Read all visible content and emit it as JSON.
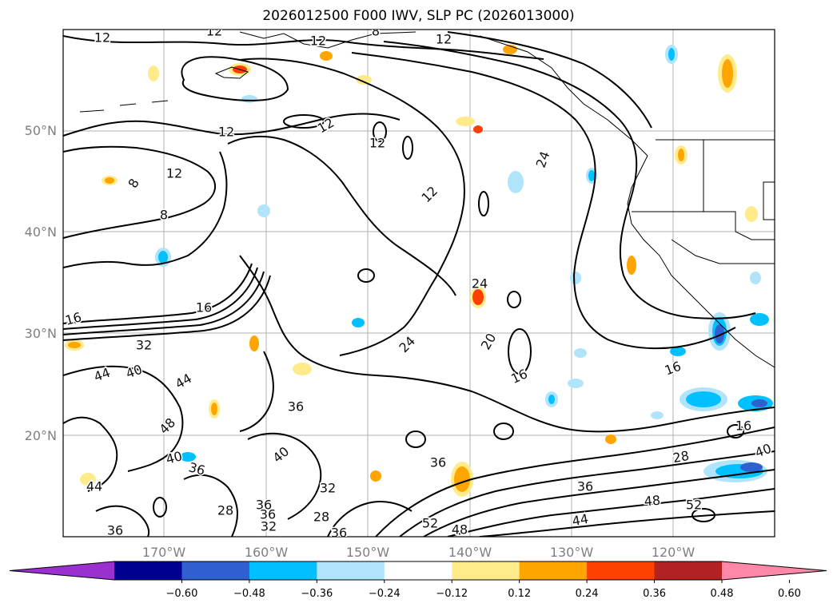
{
  "title": "2026012500 F000 IWV, SLP PC (2026013000)",
  "axes": {
    "lat_ticks": [
      "50°N",
      "40°N",
      "30°N",
      "20°N"
    ],
    "lon_ticks": [
      "170°W",
      "160°W",
      "150°W",
      "140°W",
      "130°W",
      "120°W"
    ]
  },
  "colorbar": {
    "ticks": [
      "−0.60",
      "−0.48",
      "−0.36",
      "−0.24",
      "−0.12",
      "0.12",
      "0.24",
      "0.36",
      "0.48",
      "0.60"
    ],
    "colors": [
      "#9a30d0",
      "#000090",
      "#3060d0",
      "#00c0ff",
      "#b0e4fa",
      "#ffffff",
      "#ffeb8a",
      "#ffa500",
      "#ff4000",
      "#b22222",
      "#ff88a8"
    ],
    "extend": "both"
  },
  "contour_labels": [
    {
      "text": "12"
    },
    {
      "text": "12"
    },
    {
      "text": "12"
    },
    {
      "text": "8"
    },
    {
      "text": "12"
    },
    {
      "text": "12"
    },
    {
      "text": "12"
    },
    {
      "text": "12"
    },
    {
      "text": "8"
    },
    {
      "text": "8"
    },
    {
      "text": "12"
    },
    {
      "text": "12"
    },
    {
      "text": "24"
    },
    {
      "text": "24"
    },
    {
      "text": "16"
    },
    {
      "text": "16"
    },
    {
      "text": "32"
    },
    {
      "text": "44"
    },
    {
      "text": "40"
    },
    {
      "text": "44"
    },
    {
      "text": "24"
    },
    {
      "text": "20"
    },
    {
      "text": "16"
    },
    {
      "text": "16"
    },
    {
      "text": "36"
    },
    {
      "text": "48"
    },
    {
      "text": "40"
    },
    {
      "text": "36"
    },
    {
      "text": "36"
    },
    {
      "text": "40"
    },
    {
      "text": "44"
    },
    {
      "text": "36"
    },
    {
      "text": "32"
    },
    {
      "text": "36"
    },
    {
      "text": "28"
    },
    {
      "text": "16"
    },
    {
      "text": "28"
    },
    {
      "text": "40"
    },
    {
      "text": "32"
    },
    {
      "text": "36"
    },
    {
      "text": "28"
    },
    {
      "text": "48"
    },
    {
      "text": "52"
    },
    {
      "text": "36"
    },
    {
      "text": "44"
    },
    {
      "text": "52"
    },
    {
      "text": "48"
    },
    {
      "text": "36"
    }
  ]
}
